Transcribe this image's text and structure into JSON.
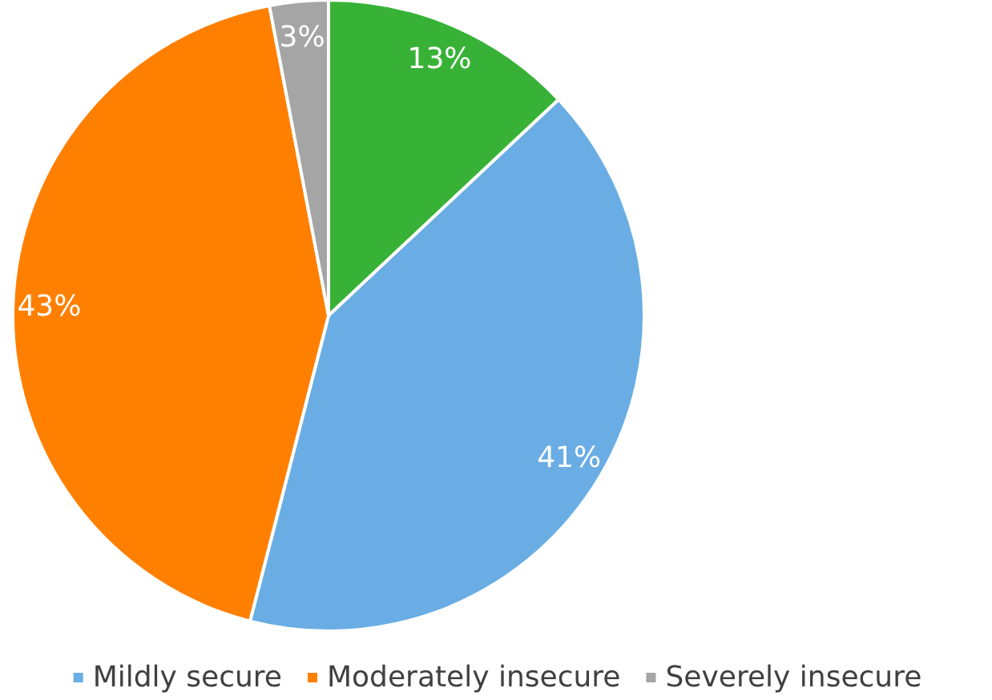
{
  "chart_data": {
    "type": "pie",
    "categories": [
      null,
      "Mildly secure",
      "Moderately insecure",
      "Severely insecure"
    ],
    "values": [
      13,
      41,
      43,
      3
    ],
    "value_labels": [
      "13%",
      "41%",
      "43%",
      "3%"
    ],
    "colors": [
      "#38b236",
      "#6aade4",
      "#ff7f00",
      "#a5a5a5"
    ],
    "legend": "bottom"
  }
}
